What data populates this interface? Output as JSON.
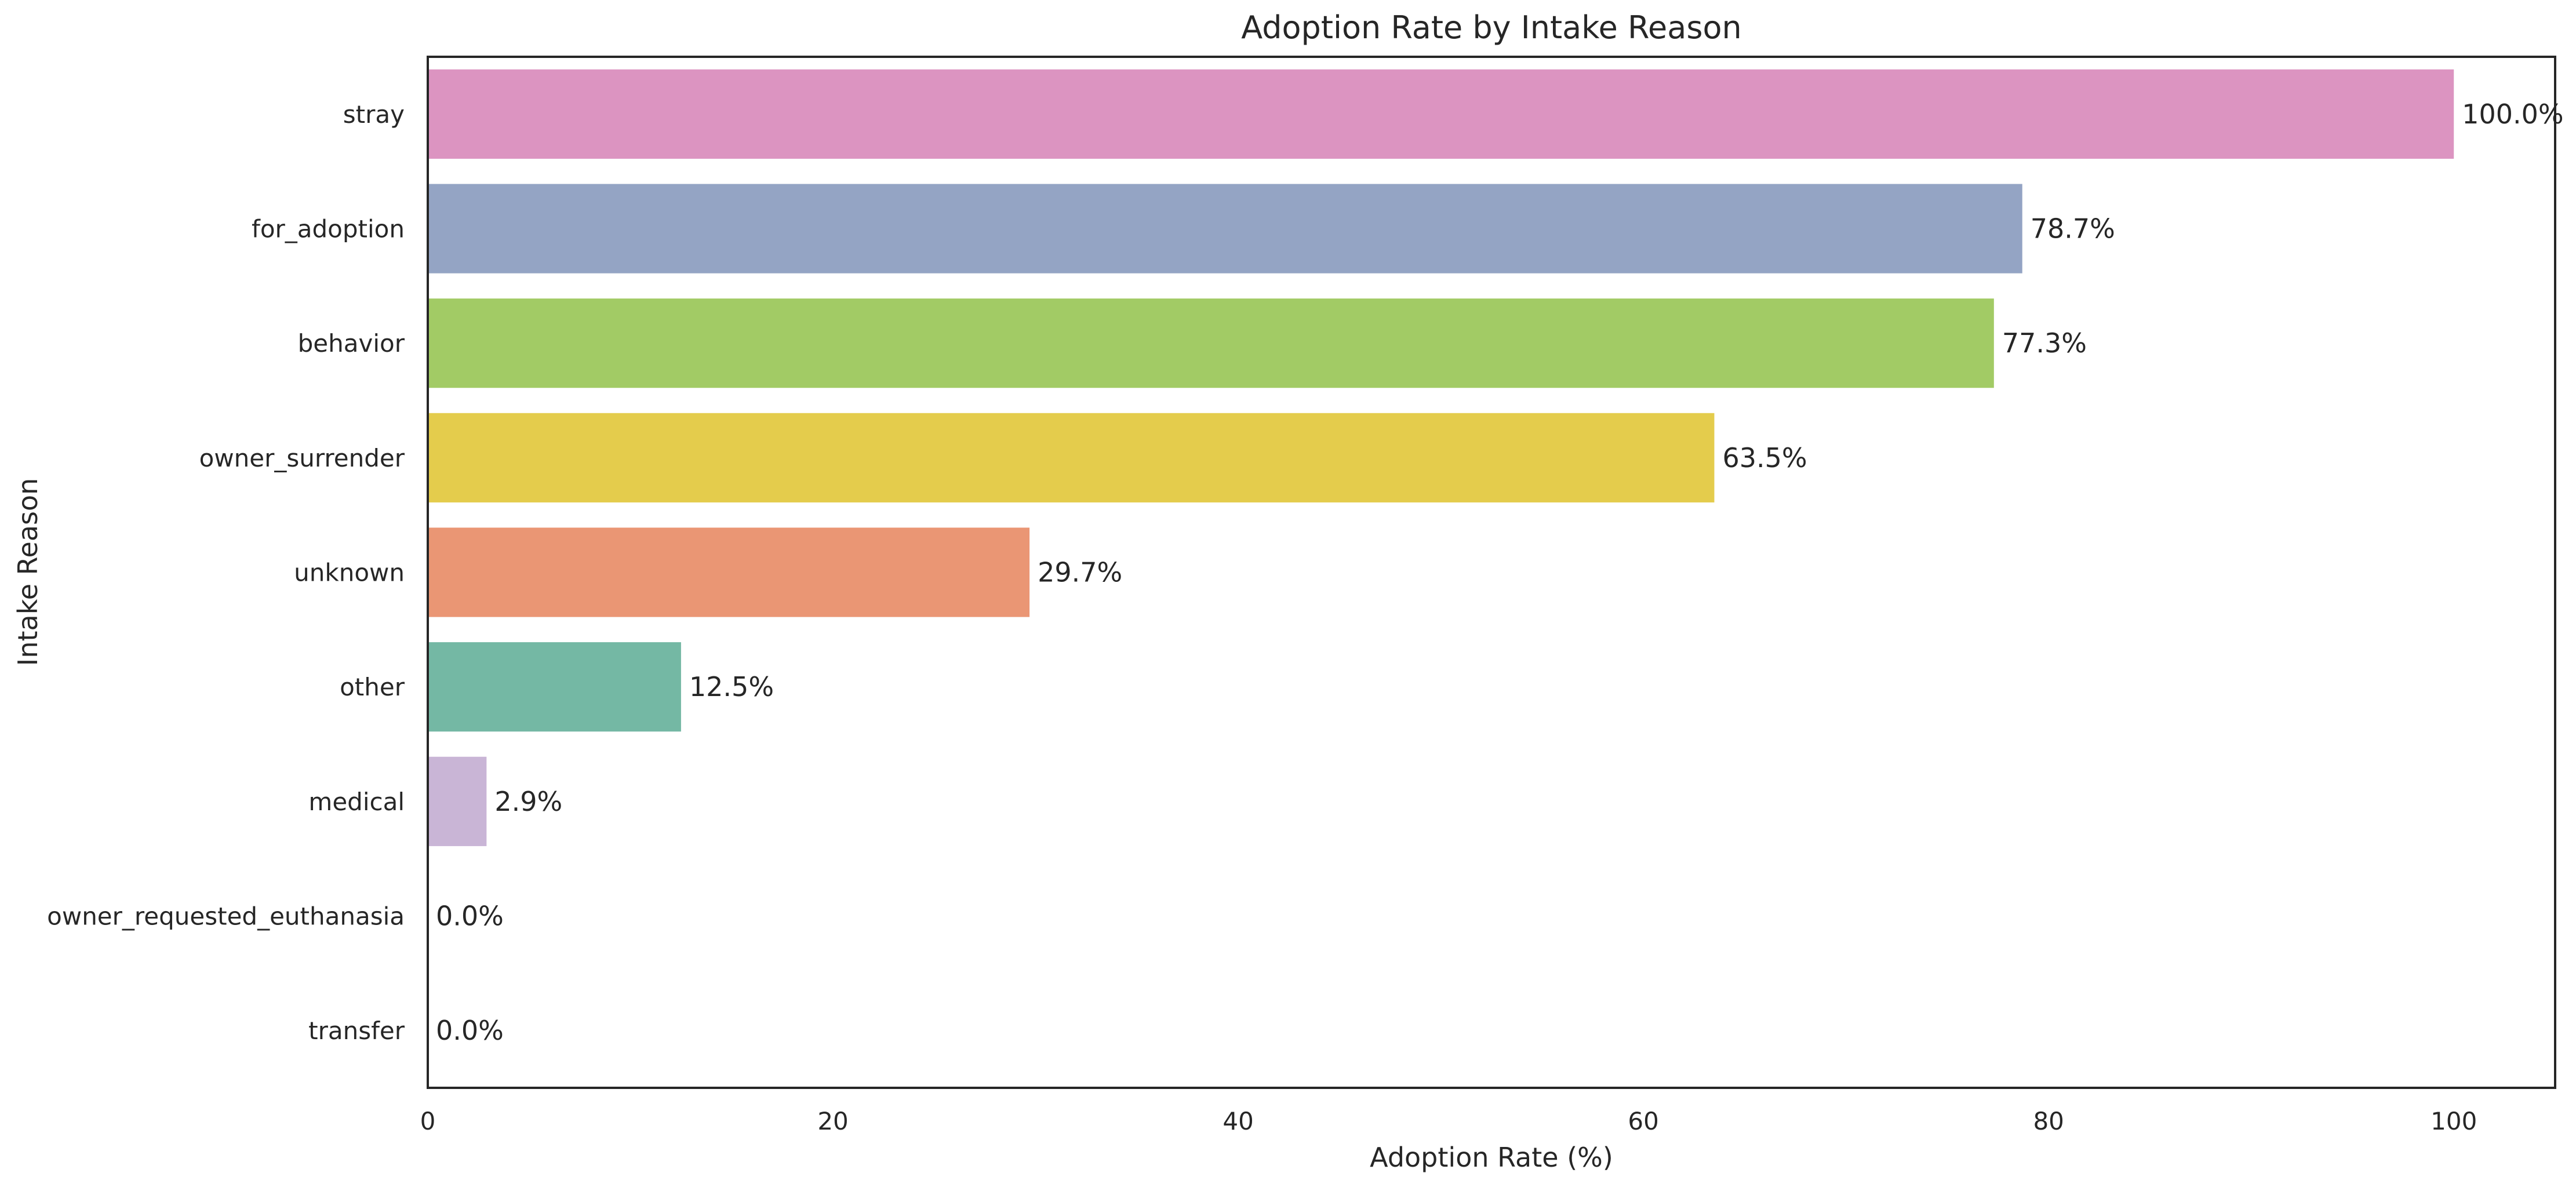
{
  "chart_data": {
    "type": "bar",
    "orientation": "horizontal",
    "title": "Adoption Rate by Intake Reason",
    "xlabel": "Adoption Rate (%)",
    "ylabel": "Intake Reason",
    "xlim": [
      0,
      105
    ],
    "x_ticks": [
      0,
      20,
      40,
      60,
      80,
      100
    ],
    "x_tick_labels": [
      "0",
      "20",
      "40",
      "60",
      "80",
      "100"
    ],
    "grid": false,
    "categories": [
      "stray",
      "for_adoption",
      "behavior",
      "owner_surrender",
      "unknown",
      "other",
      "medical",
      "owner_requested_euthanasia",
      "transfer"
    ],
    "values": [
      100.0,
      78.7,
      77.3,
      63.5,
      29.7,
      12.5,
      2.9,
      0.0,
      0.0
    ],
    "value_labels": [
      "100.0%",
      "78.7%",
      "77.3%",
      "63.5%",
      "29.7%",
      "12.5%",
      "2.9%",
      "0.0%",
      "0.0%"
    ],
    "colors": [
      "#dc94c1",
      "#94a4c4",
      "#a2cb65",
      "#e4cc4c",
      "#ea9674",
      "#74b8a4",
      "#c9b5d6",
      "#b3b3b3",
      "#8da0cb"
    ]
  }
}
